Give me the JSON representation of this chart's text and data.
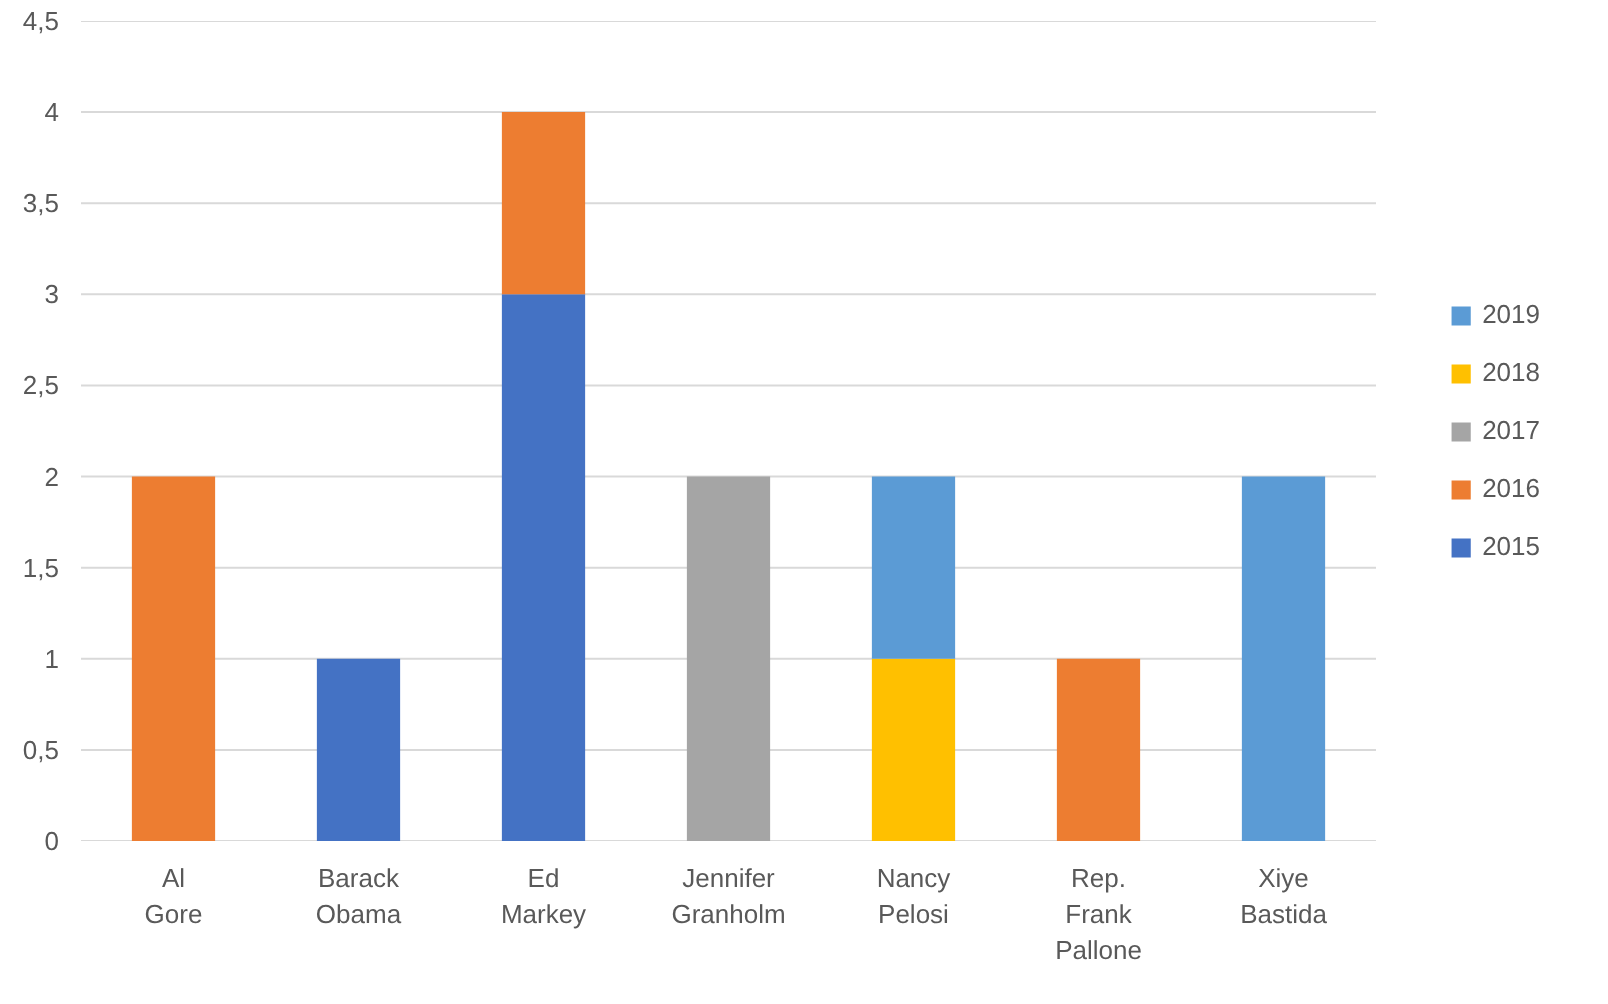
{
  "chart_data": {
    "type": "bar",
    "stacked": true,
    "categories": [
      "Al Gore",
      "Barack Obama",
      "Ed Markey",
      "Jennifer Granholm",
      "Nancy Pelosi",
      "Rep. Frank Pallone",
      "Xiye Bastida"
    ],
    "series": [
      {
        "name": "2015",
        "color": "#4472c4",
        "values": [
          null,
          1,
          3,
          null,
          null,
          null,
          null
        ]
      },
      {
        "name": "2016",
        "color": "#ed7d31",
        "values": [
          2,
          null,
          1,
          null,
          null,
          1,
          null
        ]
      },
      {
        "name": "2017",
        "color": "#a5a5a5",
        "values": [
          null,
          null,
          null,
          2,
          null,
          null,
          null
        ]
      },
      {
        "name": "2018",
        "color": "#ffc000",
        "values": [
          null,
          null,
          null,
          null,
          1,
          null,
          null
        ]
      },
      {
        "name": "2019",
        "color": "#5b9bd5",
        "values": [
          null,
          null,
          null,
          null,
          1,
          null,
          2
        ]
      }
    ],
    "ylim": [
      0,
      4.5
    ],
    "yticks": [
      0,
      {
        "value": 0.5,
        "label": "0,5"
      },
      1,
      {
        "value": 1.5,
        "label": "1,5"
      },
      2,
      {
        "value": 2.5,
        "label": "2,5"
      },
      3,
      {
        "value": 3.5,
        "label": "3,5"
      },
      4,
      {
        "value": 4.5,
        "label": "4,5"
      }
    ],
    "grid": "y",
    "legend": "right"
  }
}
